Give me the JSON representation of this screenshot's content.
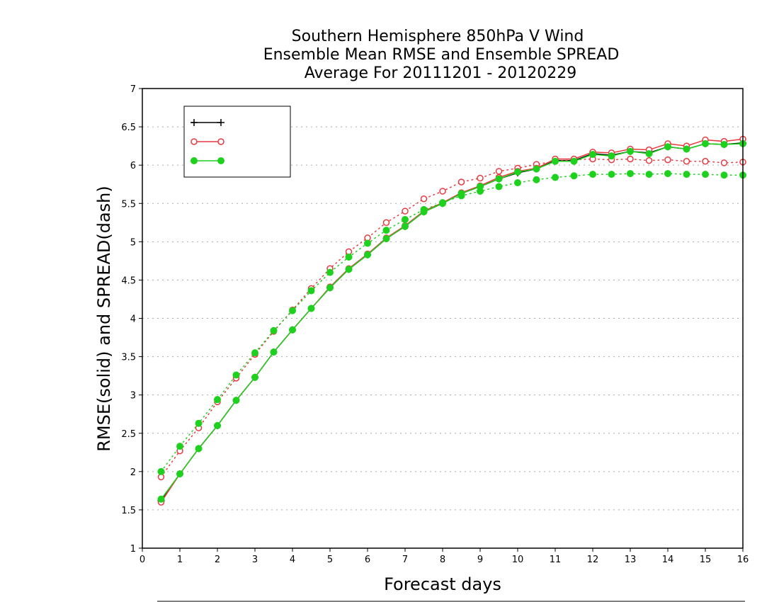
{
  "chart_data": {
    "type": "line",
    "title": [
      "Southern Hemisphere 850hPa V Wind",
      "Ensemble Mean RMSE and Ensemble SPREAD",
      "Average For 20111201 - 20120229"
    ],
    "xlabel": "Forecast days",
    "ylabel": "RMSE(solid) and SPREAD(dash)",
    "xlim": [
      0,
      16
    ],
    "ylim": [
      1,
      7
    ],
    "x_ticks": [
      "0",
      "1",
      "2",
      "3",
      "4",
      "5",
      "6",
      "7",
      "8",
      "9",
      "10",
      "11",
      "12",
      "13",
      "14",
      "15",
      "16"
    ],
    "y_ticks": [
      "1",
      "1.5",
      "2",
      "2.5",
      "3",
      "3.5",
      "4",
      "4.5",
      "5",
      "5.5",
      "6",
      "6.5",
      "7"
    ],
    "grid": "horizontal dotted",
    "legend_position": "top-left",
    "x": [
      0.5,
      1,
      1.5,
      2,
      2.5,
      3,
      3.5,
      4,
      4.5,
      5,
      5.5,
      6,
      6.5,
      7,
      7.5,
      8,
      8.5,
      9,
      9.5,
      10,
      10.5,
      11,
      11.5,
      12,
      12.5,
      13,
      13.5,
      14,
      14.5,
      15,
      15.5,
      16
    ],
    "series": [
      {
        "name": "",
        "style": "solid",
        "marker": "plus",
        "color": "#000000",
        "rmse": [
          1.62,
          1.97,
          2.3,
          2.6,
          2.93,
          3.23,
          3.56,
          3.85,
          4.13,
          4.4,
          4.64,
          4.83,
          5.04,
          5.2,
          5.39,
          5.5,
          5.63,
          5.72,
          5.82,
          5.9,
          5.95,
          6.06,
          6.06,
          6.15,
          6.13,
          6.18,
          6.16,
          6.24,
          6.21,
          6.28,
          6.27,
          6.29
        ],
        "spread": null
      },
      {
        "name": "",
        "style": "solid",
        "marker": "open-circle",
        "color": "#e8393f",
        "rmse": [
          1.6,
          1.97,
          2.3,
          2.6,
          2.93,
          3.23,
          3.56,
          3.85,
          4.13,
          4.41,
          4.65,
          4.84,
          5.05,
          5.21,
          5.4,
          5.51,
          5.64,
          5.73,
          5.84,
          5.92,
          5.96,
          6.08,
          6.08,
          6.17,
          6.16,
          6.21,
          6.2,
          6.28,
          6.25,
          6.33,
          6.31,
          6.34
        ],
        "spread": [
          1.93,
          2.27,
          2.57,
          2.91,
          3.22,
          3.53,
          3.83,
          4.11,
          4.39,
          4.65,
          4.87,
          5.05,
          5.25,
          5.4,
          5.56,
          5.66,
          5.78,
          5.83,
          5.92,
          5.96,
          6.01,
          6.05,
          6.07,
          6.08,
          6.07,
          6.08,
          6.06,
          6.07,
          6.05,
          6.05,
          6.03,
          6.04
        ]
      },
      {
        "name": "",
        "style": "solid",
        "marker": "filled-circle",
        "color": "#1ed11e",
        "rmse": [
          1.64,
          1.97,
          2.3,
          2.6,
          2.93,
          3.23,
          3.56,
          3.85,
          4.13,
          4.4,
          4.64,
          4.83,
          5.04,
          5.2,
          5.39,
          5.5,
          5.63,
          5.72,
          5.82,
          5.91,
          5.95,
          6.05,
          6.05,
          6.14,
          6.12,
          6.18,
          6.15,
          6.24,
          6.21,
          6.28,
          6.27,
          6.28
        ],
        "spread": [
          2.0,
          2.33,
          2.63,
          2.94,
          3.26,
          3.55,
          3.84,
          4.1,
          4.36,
          4.6,
          4.8,
          4.98,
          5.15,
          5.29,
          5.42,
          5.51,
          5.6,
          5.66,
          5.72,
          5.77,
          5.81,
          5.84,
          5.86,
          5.88,
          5.88,
          5.89,
          5.88,
          5.89,
          5.88,
          5.88,
          5.87,
          5.87
        ]
      }
    ]
  },
  "colors": {
    "axis": "#000000",
    "grid": "#aaaaaa"
  }
}
